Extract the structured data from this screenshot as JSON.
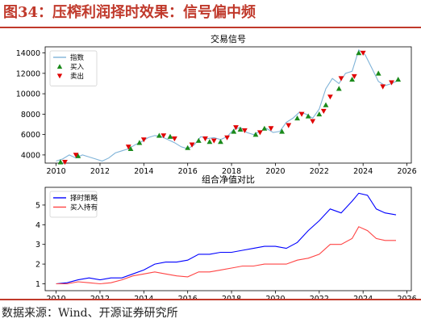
{
  "figure": {
    "title": "图34：压榨利润择时效果：信号偏中频",
    "source": "数据来源：Wind、开源证券研究所"
  },
  "colors": {
    "accent": "#c0392b",
    "index_line": "#7fb3d8",
    "strategy_line": "#0000ff",
    "hold_line": "#ff4444",
    "buy_marker": "#1a8a1a",
    "sell_marker": "#e00000"
  },
  "chart_data": [
    {
      "type": "line",
      "title": "交易信号",
      "xlim": [
        2009.5,
        2026.2
      ],
      "ylim": [
        3200,
        14600
      ],
      "x_ticks": [
        2010,
        2012,
        2014,
        2016,
        2018,
        2020,
        2022,
        2024,
        2026
      ],
      "y_ticks": [
        4000,
        6000,
        8000,
        10000,
        12000,
        14000
      ],
      "grid": false,
      "legend_position": "upper-left",
      "series": [
        {
          "name": "指数",
          "x": [
            2010.0,
            2010.3,
            2010.6,
            2010.9,
            2011.2,
            2011.5,
            2011.8,
            2012.1,
            2012.4,
            2012.7,
            2013.0,
            2013.3,
            2013.6,
            2013.9,
            2014.2,
            2014.5,
            2014.8,
            2015.1,
            2015.4,
            2015.7,
            2016.0,
            2016.3,
            2016.6,
            2016.9,
            2017.2,
            2017.5,
            2017.8,
            2018.1,
            2018.4,
            2018.7,
            2019.0,
            2019.3,
            2019.6,
            2019.9,
            2020.2,
            2020.5,
            2020.8,
            2021.1,
            2021.4,
            2021.7,
            2022.0,
            2022.3,
            2022.6,
            2022.9,
            2023.2,
            2023.5,
            2023.8,
            2024.1,
            2024.4,
            2024.7,
            2025.0,
            2025.3,
            2025.6
          ],
          "values": [
            3400,
            3600,
            4000,
            3700,
            4000,
            3800,
            3600,
            3400,
            3700,
            4200,
            4400,
            4600,
            5000,
            5300,
            5700,
            5900,
            5800,
            5500,
            5200,
            4800,
            4600,
            5000,
            5800,
            5600,
            5700,
            5500,
            5800,
            6500,
            6700,
            6200,
            6000,
            6300,
            6600,
            6200,
            6300,
            7200,
            7600,
            8200,
            8000,
            7600,
            8500,
            10500,
            11500,
            11000,
            12000,
            12200,
            14300,
            13800,
            12500,
            11200,
            10800,
            11000,
            11300
          ]
        },
        {
          "name": "买入",
          "x": [
            2010.2,
            2011.0,
            2013.4,
            2013.8,
            2014.7,
            2015.2,
            2016.0,
            2016.5,
            2017.0,
            2017.5,
            2018.1,
            2018.4,
            2019.1,
            2019.5,
            2020.3,
            2021.0,
            2021.5,
            2022.0,
            2022.3,
            2022.9,
            2023.5,
            2023.8,
            2024.7,
            2025.6
          ],
          "values": [
            3300,
            3900,
            4600,
            5200,
            5900,
            5800,
            4700,
            5400,
            5300,
            5300,
            6300,
            6500,
            6000,
            6600,
            6300,
            7600,
            7800,
            8000,
            8900,
            10500,
            11400,
            14000,
            12000,
            11400
          ]
        },
        {
          "name": "卖出",
          "x": [
            2010.4,
            2010.9,
            2013.3,
            2014.0,
            2014.9,
            2015.4,
            2016.2,
            2016.8,
            2017.2,
            2017.8,
            2018.2,
            2018.6,
            2019.3,
            2019.8,
            2020.6,
            2021.2,
            2021.7,
            2022.2,
            2022.5,
            2023.0,
            2023.6,
            2024.0,
            2024.9,
            2025.3
          ],
          "values": [
            3300,
            4000,
            4800,
            5500,
            5900,
            5600,
            5000,
            5600,
            5400,
            5700,
            6700,
            6400,
            6200,
            6600,
            6900,
            8000,
            7300,
            8300,
            9700,
            11500,
            11700,
            14000,
            10700,
            11100
          ]
        }
      ]
    },
    {
      "type": "line",
      "title": "组合净值对比",
      "xlim": [
        2009.5,
        2026.2
      ],
      "ylim": [
        0.65,
        5.9
      ],
      "x_ticks": [
        2010,
        2012,
        2014,
        2016,
        2018,
        2020,
        2022,
        2024,
        2026
      ],
      "y_ticks": [
        1,
        2,
        3,
        4,
        5
      ],
      "grid": false,
      "legend_position": "upper-left",
      "series": [
        {
          "name": "择时策略",
          "x": [
            2010.0,
            2010.5,
            2011.0,
            2011.5,
            2012.0,
            2012.5,
            2013.0,
            2013.5,
            2014.0,
            2014.5,
            2015.0,
            2015.5,
            2016.0,
            2016.5,
            2017.0,
            2017.5,
            2018.0,
            2018.5,
            2019.0,
            2019.5,
            2020.0,
            2020.5,
            2021.0,
            2021.5,
            2022.0,
            2022.5,
            2023.0,
            2023.5,
            2023.8,
            2024.2,
            2024.6,
            2025.0,
            2025.5
          ],
          "values": [
            1.0,
            1.05,
            1.2,
            1.3,
            1.2,
            1.3,
            1.3,
            1.5,
            1.7,
            2.0,
            2.1,
            2.1,
            2.2,
            2.5,
            2.5,
            2.6,
            2.6,
            2.7,
            2.8,
            2.9,
            2.9,
            2.8,
            3.1,
            3.7,
            4.2,
            4.8,
            4.6,
            5.2,
            5.6,
            5.5,
            4.8,
            4.6,
            4.5
          ]
        },
        {
          "name": "买入持有",
          "x": [
            2010.0,
            2010.5,
            2011.0,
            2011.5,
            2012.0,
            2012.5,
            2013.0,
            2013.5,
            2014.0,
            2014.5,
            2015.0,
            2015.5,
            2016.0,
            2016.5,
            2017.0,
            2017.5,
            2018.0,
            2018.5,
            2019.0,
            2019.5,
            2020.0,
            2020.5,
            2021.0,
            2021.5,
            2022.0,
            2022.5,
            2023.0,
            2023.5,
            2023.8,
            2024.2,
            2024.6,
            2025.0,
            2025.5
          ],
          "values": [
            1.0,
            1.0,
            1.1,
            1.05,
            1.0,
            1.05,
            1.2,
            1.4,
            1.5,
            1.6,
            1.5,
            1.4,
            1.35,
            1.6,
            1.6,
            1.7,
            1.8,
            1.9,
            1.9,
            2.0,
            2.0,
            2.0,
            2.2,
            2.3,
            2.5,
            3.0,
            3.0,
            3.3,
            3.9,
            3.7,
            3.3,
            3.2,
            3.2
          ]
        }
      ]
    }
  ]
}
